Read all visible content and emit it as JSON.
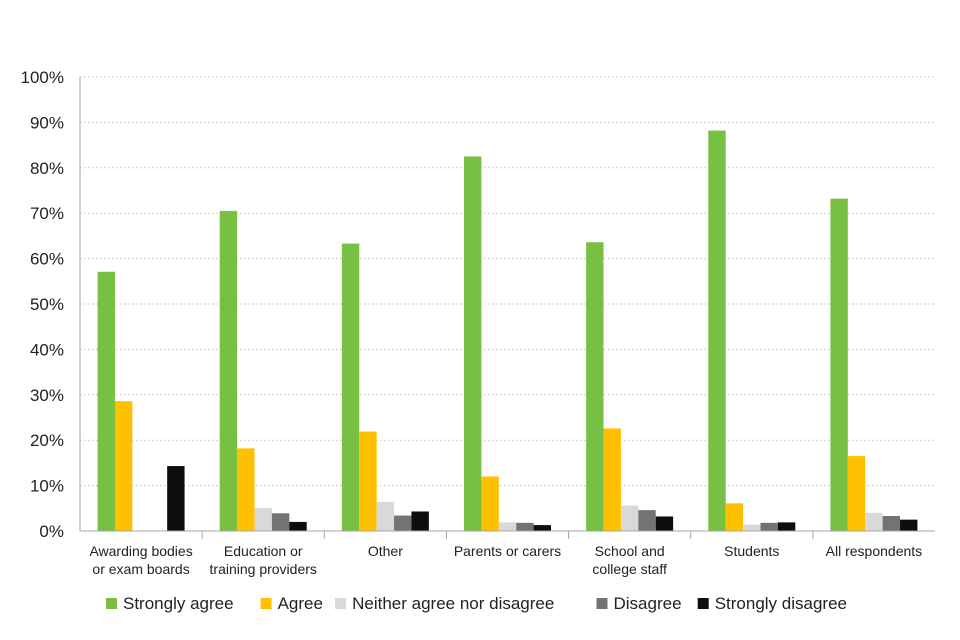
{
  "chart_data": {
    "type": "bar",
    "categories": [
      [
        "Awarding bodies",
        "or exam boards"
      ],
      [
        "Education or",
        "training providers"
      ],
      [
        "Other"
      ],
      [
        "Parents or carers"
      ],
      [
        "School and",
        "college staff"
      ],
      [
        "Students"
      ],
      [
        "All respondents"
      ]
    ],
    "series": [
      {
        "name": "Strongly agree",
        "color": "#77c043",
        "values": [
          57.1,
          70.5,
          63.3,
          82.5,
          63.6,
          88.2,
          73.2
        ]
      },
      {
        "name": "Agree",
        "color": "#ffc000",
        "values": [
          28.6,
          18.2,
          21.9,
          12.0,
          22.6,
          6.1,
          16.5
        ]
      },
      {
        "name": "Neither agree nor disagree",
        "color": "#d9d9d9",
        "values": [
          0,
          5.1,
          6.4,
          1.9,
          5.6,
          1.4,
          4.0
        ]
      },
      {
        "name": "Disagree",
        "color": "#737373",
        "values": [
          0,
          3.9,
          3.4,
          1.8,
          4.6,
          1.8,
          3.3
        ]
      },
      {
        "name": "Strongly disagree",
        "color": "#0d0d0d",
        "values": [
          14.3,
          2.0,
          4.3,
          1.3,
          3.2,
          1.9,
          2.5
        ]
      }
    ],
    "ylim": [
      0,
      100
    ],
    "yticks": [
      0,
      10,
      20,
      30,
      40,
      50,
      60,
      70,
      80,
      90,
      100
    ],
    "ytick_suffix": "%",
    "grid": true,
    "legend_position": "bottom",
    "title": "",
    "xlabel": "",
    "ylabel": ""
  }
}
